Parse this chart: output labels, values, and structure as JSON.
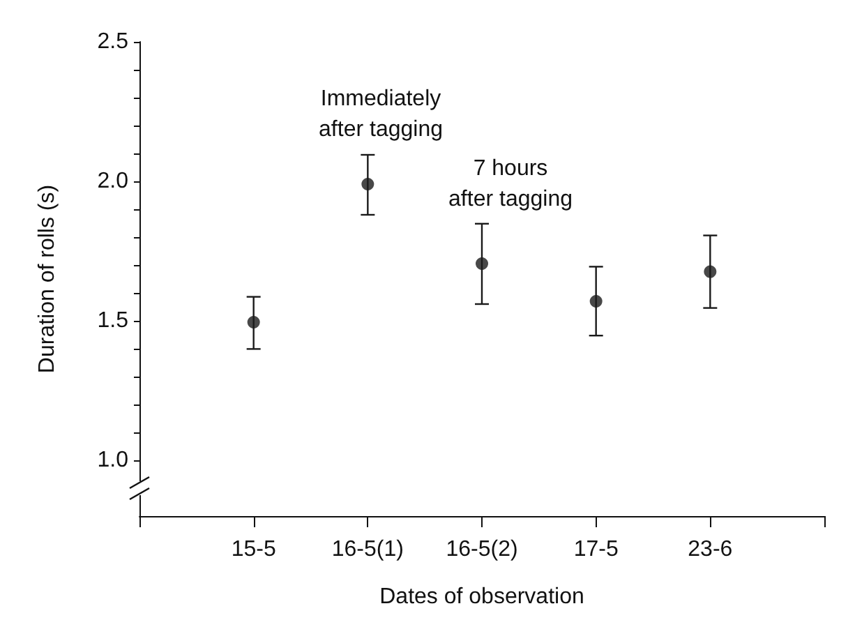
{
  "chart_data": {
    "type": "scatter",
    "xlabel": "Dates of observation",
    "ylabel": "Duration of rolls (s)",
    "categories": [
      "15-5",
      "16-5(1)",
      "16-5(2)",
      "17-5",
      "23-6"
    ],
    "values": [
      1.495,
      1.99,
      1.705,
      1.57,
      1.676
    ],
    "errors": [
      [
        1.399,
        1.586
      ],
      [
        1.88,
        2.095
      ],
      [
        1.56,
        1.848
      ],
      [
        1.447,
        1.694
      ],
      [
        1.546,
        1.806
      ]
    ],
    "color": "#1a1a1a",
    "marker": "circle",
    "grid": false,
    "legend": false,
    "ylim": [
      0.8,
      2.5
    ],
    "yticks": [
      {
        "value": 1.0,
        "label": "1.0"
      },
      {
        "value": 1.1,
        "label": null
      },
      {
        "value": 1.2,
        "label": null
      },
      {
        "value": 1.3,
        "label": null
      },
      {
        "value": 1.4,
        "label": null
      },
      {
        "value": 1.5,
        "label": "1.5"
      },
      {
        "value": 1.6,
        "label": null
      },
      {
        "value": 1.7,
        "label": null
      },
      {
        "value": 1.8,
        "label": null
      },
      {
        "value": 1.9,
        "label": null
      },
      {
        "value": 2.0,
        "label": "2.0"
      },
      {
        "value": 2.1,
        "label": null
      },
      {
        "value": 2.2,
        "label": null
      },
      {
        "value": 2.3,
        "label": null
      },
      {
        "value": 2.4,
        "label": null
      },
      {
        "value": 2.5,
        "label": "2.5"
      }
    ],
    "annotations": [
      "Immediately\nafter tagging",
      "7 hours\nafter tagging"
    ]
  }
}
